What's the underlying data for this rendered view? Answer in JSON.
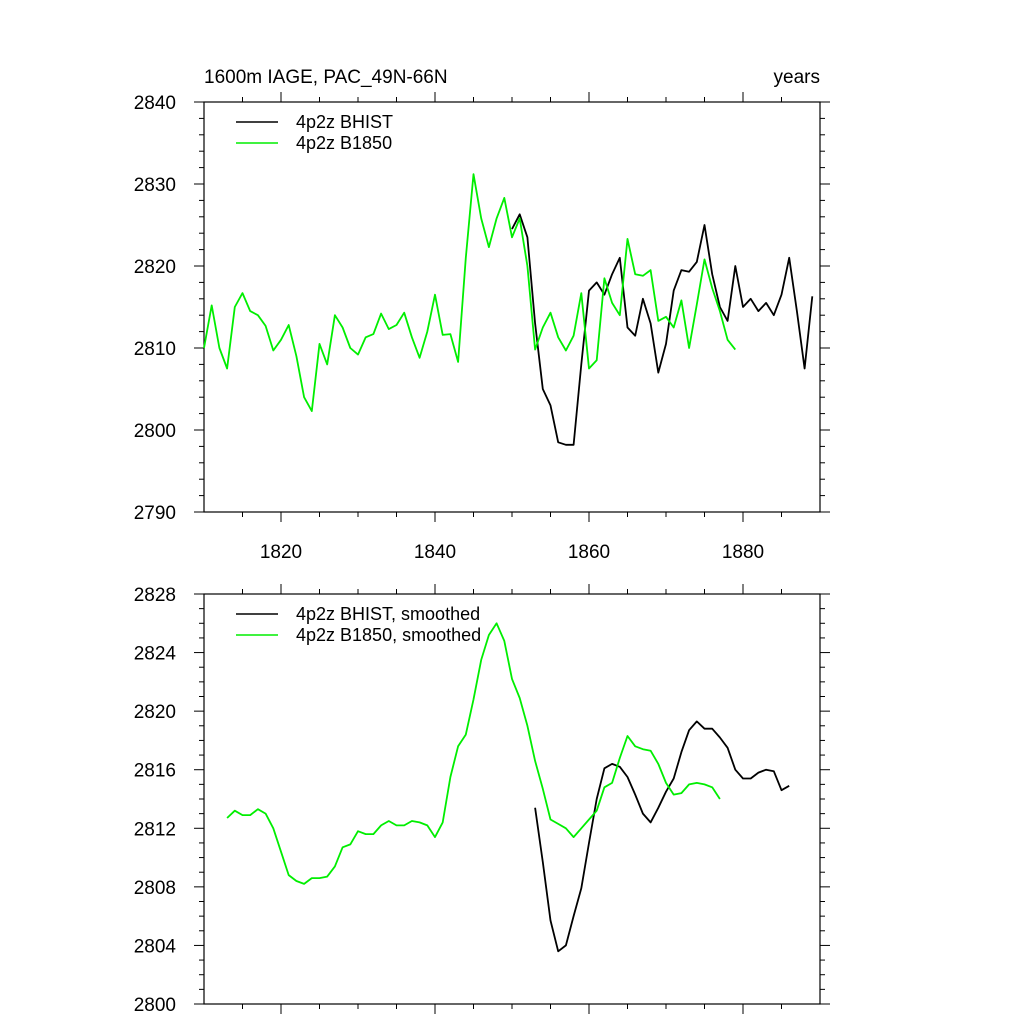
{
  "figure": {
    "title_left": "1600m IAGE, PAC_49N-66N",
    "title_right": "years"
  },
  "chart_data": [
    {
      "type": "line",
      "title": "1600m IAGE, PAC_49N-66N",
      "xlabel": "",
      "ylabel": "",
      "xlim": [
        1810,
        1890
      ],
      "ylim": [
        2790,
        2840
      ],
      "x_ticks": [
        1820,
        1840,
        1860,
        1880
      ],
      "y_ticks": [
        2790,
        2800,
        2810,
        2820,
        2830,
        2840
      ],
      "grid": false,
      "legend_placement": "top-left",
      "series": [
        {
          "name": "4p2z BHIST",
          "color": "#000000",
          "x": [
            1850,
            1851,
            1852,
            1853,
            1854,
            1855,
            1856,
            1857,
            1858,
            1859,
            1860,
            1861,
            1862,
            1863,
            1864,
            1865,
            1866,
            1867,
            1868,
            1869,
            1870,
            1871,
            1872,
            1873,
            1874,
            1875,
            1876,
            1877,
            1878,
            1879,
            1880,
            1881,
            1882,
            1883,
            1884,
            1885,
            1886,
            1887,
            1888,
            1889
          ],
          "y": [
            2824.5,
            2826.3,
            2823.5,
            2813.0,
            2805.0,
            2803.0,
            2798.5,
            2798.2,
            2798.2,
            2808.0,
            2817.0,
            2818.0,
            2816.5,
            2819.0,
            2821.0,
            2812.5,
            2811.5,
            2816.0,
            2813.0,
            2807.0,
            2810.5,
            2817.0,
            2819.5,
            2819.3,
            2820.5,
            2825.0,
            2819.0,
            2815.0,
            2813.3,
            2820.0,
            2815.0,
            2816.0,
            2814.5,
            2815.5,
            2814.0,
            2816.5,
            2821.0,
            2814.5,
            2807.5,
            2816.3
          ]
        },
        {
          "name": "4p2z B1850",
          "color": "#00ee00",
          "x": [
            1810,
            1811,
            1812,
            1813,
            1814,
            1815,
            1816,
            1817,
            1818,
            1819,
            1820,
            1821,
            1822,
            1823,
            1824,
            1825,
            1826,
            1827,
            1828,
            1829,
            1830,
            1831,
            1832,
            1833,
            1834,
            1835,
            1836,
            1837,
            1838,
            1839,
            1840,
            1841,
            1842,
            1843,
            1844,
            1845,
            1846,
            1847,
            1848,
            1849,
            1850,
            1851,
            1852,
            1853,
            1854,
            1855,
            1856,
            1857,
            1858,
            1859,
            1860,
            1861,
            1862,
            1863,
            1864,
            1865,
            1866,
            1867,
            1868,
            1869,
            1870,
            1871,
            1872,
            1873,
            1874,
            1875,
            1876,
            1877,
            1878,
            1879
          ],
          "y": [
            2810.0,
            2815.2,
            2810.0,
            2807.5,
            2815.0,
            2816.7,
            2814.5,
            2814.0,
            2812.7,
            2809.7,
            2811.0,
            2812.8,
            2809.0,
            2804.0,
            2802.3,
            2810.5,
            2808.0,
            2814.0,
            2812.5,
            2810.0,
            2809.2,
            2811.3,
            2811.7,
            2814.2,
            2812.3,
            2812.8,
            2814.3,
            2811.3,
            2808.8,
            2812.0,
            2816.5,
            2811.6,
            2811.7,
            2808.3,
            2821.0,
            2831.2,
            2825.8,
            2822.3,
            2825.8,
            2828.3,
            2823.5,
            2825.8,
            2820.0,
            2809.8,
            2812.5,
            2814.3,
            2811.3,
            2809.7,
            2811.5,
            2816.7,
            2807.5,
            2808.5,
            2818.5,
            2815.5,
            2814.0,
            2823.3,
            2819.0,
            2818.8,
            2819.5,
            2813.3,
            2813.8,
            2812.5,
            2815.8,
            2810.0,
            2815.3,
            2820.8,
            2817.3,
            2814.5,
            2811.0,
            2809.8
          ]
        }
      ]
    },
    {
      "type": "line",
      "title": "",
      "xlabel": "",
      "ylabel": "",
      "xlim": [
        1810,
        1890
      ],
      "ylim": [
        2800,
        2828
      ],
      "x_ticks": [
        1820,
        1840,
        1860,
        1880
      ],
      "y_ticks": [
        2800,
        2804,
        2808,
        2812,
        2816,
        2820,
        2824,
        2828
      ],
      "grid": false,
      "legend_placement": "top-left",
      "series": [
        {
          "name": "4p2z BHIST, smoothed",
          "color": "#000000",
          "x": [
            1853,
            1854,
            1855,
            1856,
            1857,
            1858,
            1859,
            1860,
            1861,
            1862,
            1863,
            1864,
            1865,
            1866,
            1867,
            1868,
            1869,
            1870,
            1871,
            1872,
            1873,
            1874,
            1875,
            1876,
            1877,
            1878,
            1879,
            1880,
            1881,
            1882,
            1883,
            1884,
            1885,
            1886
          ],
          "y": [
            2813.4,
            2809.7,
            2805.7,
            2803.6,
            2804.0,
            2806.0,
            2807.9,
            2811.0,
            2814.0,
            2816.1,
            2816.4,
            2816.2,
            2815.5,
            2814.3,
            2813.0,
            2812.4,
            2813.4,
            2814.5,
            2815.4,
            2817.2,
            2818.7,
            2819.3,
            2818.8,
            2818.8,
            2818.2,
            2817.5,
            2816.0,
            2815.4,
            2815.4,
            2815.8,
            2816.0,
            2815.9,
            2814.6,
            2814.9
          ]
        },
        {
          "name": "4p2z B1850, smoothed",
          "color": "#00ee00",
          "x": [
            1813,
            1814,
            1815,
            1816,
            1817,
            1818,
            1819,
            1820,
            1821,
            1822,
            1823,
            1824,
            1825,
            1826,
            1827,
            1828,
            1829,
            1830,
            1831,
            1832,
            1833,
            1834,
            1835,
            1836,
            1837,
            1838,
            1839,
            1840,
            1841,
            1842,
            1843,
            1844,
            1845,
            1846,
            1847,
            1848,
            1849,
            1850,
            1851,
            1852,
            1853,
            1854,
            1855,
            1856,
            1857,
            1858,
            1859,
            1860,
            1861,
            1862,
            1863,
            1864,
            1865,
            1866,
            1867,
            1868,
            1869,
            1870,
            1871,
            1872,
            1873,
            1874,
            1875,
            1876,
            1877
          ],
          "y": [
            2812.7,
            2813.2,
            2812.9,
            2812.9,
            2813.3,
            2813.0,
            2812.0,
            2810.4,
            2808.8,
            2808.4,
            2808.2,
            2808.6,
            2808.6,
            2808.7,
            2809.4,
            2810.7,
            2810.9,
            2811.8,
            2811.6,
            2811.6,
            2812.2,
            2812.5,
            2812.2,
            2812.2,
            2812.5,
            2812.4,
            2812.2,
            2811.4,
            2812.4,
            2815.5,
            2817.6,
            2818.4,
            2820.8,
            2823.5,
            2825.2,
            2826.0,
            2824.8,
            2822.2,
            2820.9,
            2819.0,
            2816.6,
            2814.7,
            2812.6,
            2812.3,
            2812.0,
            2811.4,
            2812.0,
            2812.6,
            2813.2,
            2814.8,
            2815.1,
            2816.8,
            2818.3,
            2817.6,
            2817.4,
            2817.3,
            2816.4,
            2815.1,
            2814.3,
            2814.4,
            2815.0,
            2815.1,
            2815.0,
            2814.8,
            2814.0
          ]
        }
      ]
    }
  ]
}
